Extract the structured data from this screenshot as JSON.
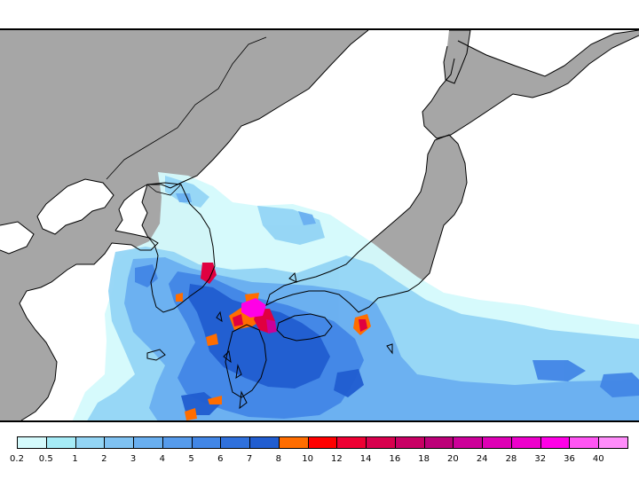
{
  "map": {
    "land_color": "#a6a6a6",
    "sea_color": "#ffffff",
    "coast_color": "#000000"
  },
  "legend": {
    "levels": [
      "0.2",
      "0.5",
      "1",
      "2",
      "3",
      "4",
      "5",
      "6",
      "7",
      "8",
      "10",
      "12",
      "14",
      "16",
      "18",
      "20",
      "24",
      "28",
      "32",
      "36",
      "40"
    ],
    "colors": [
      "#d4fafc",
      "#a6ecf7",
      "#93d5f5",
      "#7fc2f2",
      "#69aff0",
      "#569bec",
      "#4286e6",
      "#2f70dc",
      "#215dd0",
      "#ff6d00",
      "#ff0000",
      "#ee0033",
      "#d8004d",
      "#c80064",
      "#bc0078",
      "#cc0099",
      "#de00b5",
      "#ed00cb",
      "#ff00e6",
      "#ff55f3",
      "#ff8cfa"
    ]
  }
}
